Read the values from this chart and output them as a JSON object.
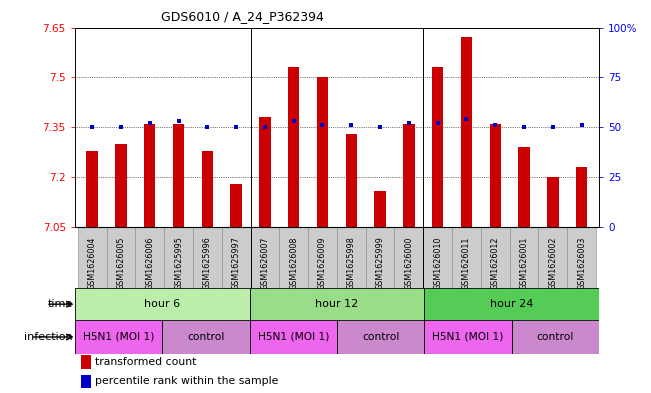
{
  "title": "GDS6010 / A_24_P362394",
  "samples": [
    "GSM1626004",
    "GSM1626005",
    "GSM1626006",
    "GSM1625995",
    "GSM1625996",
    "GSM1625997",
    "GSM1626007",
    "GSM1626008",
    "GSM1626009",
    "GSM1625998",
    "GSM1625999",
    "GSM1626000",
    "GSM1626010",
    "GSM1626011",
    "GSM1626012",
    "GSM1626001",
    "GSM1626002",
    "GSM1626003"
  ],
  "bar_values": [
    7.28,
    7.3,
    7.36,
    7.36,
    7.28,
    7.18,
    7.38,
    7.53,
    7.5,
    7.33,
    7.16,
    7.36,
    7.53,
    7.62,
    7.36,
    7.29,
    7.2,
    7.23
  ],
  "percentile_values": [
    50,
    50,
    52,
    53,
    50,
    50,
    50,
    53,
    51,
    51,
    50,
    52,
    52,
    54,
    51,
    50,
    50,
    51
  ],
  "y_min": 7.05,
  "y_max": 7.65,
  "y_ticks_left": [
    7.05,
    7.2,
    7.35,
    7.5,
    7.65
  ],
  "y_ticks_right": [
    0,
    25,
    50,
    75,
    100
  ],
  "bar_color": "#cc0000",
  "percentile_color": "#0000cc",
  "label_bg": "#cccccc",
  "time_groups": [
    {
      "label": "hour 6",
      "start": 0,
      "end": 6,
      "color": "#bbeeaa"
    },
    {
      "label": "hour 12",
      "start": 6,
      "end": 12,
      "color": "#99dd88"
    },
    {
      "label": "hour 24",
      "start": 12,
      "end": 18,
      "color": "#55cc55"
    }
  ],
  "infection_groups": [
    {
      "label": "H5N1 (MOI 1)",
      "start": 0,
      "end": 3,
      "color": "#ee66ee"
    },
    {
      "label": "control",
      "start": 3,
      "end": 6,
      "color": "#cc88cc"
    },
    {
      "label": "H5N1 (MOI 1)",
      "start": 6,
      "end": 9,
      "color": "#ee66ee"
    },
    {
      "label": "control",
      "start": 9,
      "end": 12,
      "color": "#cc88cc"
    },
    {
      "label": "H5N1 (MOI 1)",
      "start": 12,
      "end": 15,
      "color": "#ee66ee"
    },
    {
      "label": "control",
      "start": 15,
      "end": 18,
      "color": "#cc88cc"
    }
  ],
  "legend_items": [
    {
      "label": "transformed count",
      "color": "#cc0000"
    },
    {
      "label": "percentile rank within the sample",
      "color": "#0000cc"
    }
  ],
  "dividers": [
    5.5,
    11.5
  ],
  "bar_width": 0.4,
  "title_fontsize": 9,
  "tick_fontsize": 7.5,
  "sample_fontsize": 5.8,
  "row_fontsize": 8.0
}
